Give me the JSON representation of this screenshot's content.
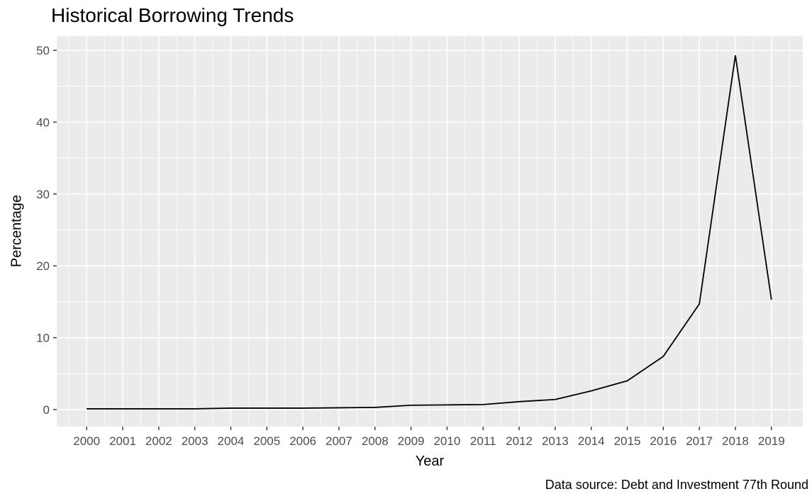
{
  "title": "Historical Borrowing Trends",
  "axes": {
    "xlabel": "Year",
    "ylabel": "Percentage"
  },
  "caption": "Data source: Debt and Investment 77th Round",
  "colors": {
    "page_bg": "#FFFFFF",
    "panel_bg": "#EBEBEB",
    "grid": "#FFFFFF",
    "line": "#000000",
    "tick_label": "#4D4D4D",
    "tick_mark": "#333333",
    "text": "#000000"
  },
  "chart_data": {
    "type": "line",
    "title": "Historical Borrowing Trends",
    "xlabel": "Year",
    "ylabel": "Percentage",
    "caption": "Data source: Debt and Investment 77th Round",
    "x": [
      2000,
      2001,
      2002,
      2003,
      2004,
      2005,
      2006,
      2007,
      2008,
      2009,
      2010,
      2011,
      2012,
      2013,
      2014,
      2015,
      2016,
      2017,
      2018,
      2019
    ],
    "series": [
      {
        "name": "Percentage",
        "values": [
          0.1,
          0.1,
          0.1,
          0.1,
          0.2,
          0.2,
          0.2,
          0.25,
          0.3,
          0.6,
          0.65,
          0.7,
          1.1,
          1.4,
          2.6,
          4.0,
          7.4,
          14.7,
          49.3,
          15.3
        ]
      }
    ],
    "xlim": [
      1999.17,
      2019.87
    ],
    "ylim": [
      -2.37,
      51.97
    ],
    "x_ticks": [
      2000,
      2001,
      2002,
      2003,
      2004,
      2005,
      2006,
      2007,
      2008,
      2009,
      2010,
      2011,
      2012,
      2013,
      2014,
      2015,
      2016,
      2017,
      2018,
      2019
    ],
    "y_ticks": [
      0,
      10,
      20,
      30,
      40,
      50
    ],
    "x_minor": [
      1999.5,
      2000.5,
      2001.5,
      2002.5,
      2003.5,
      2004.5,
      2005.5,
      2006.5,
      2007.5,
      2008.5,
      2009.5,
      2010.5,
      2011.5,
      2012.5,
      2013.5,
      2014.5,
      2015.5,
      2016.5,
      2017.5,
      2018.5,
      2019.5
    ],
    "y_minor": [
      5,
      15,
      25,
      35,
      45
    ],
    "grid": true,
    "legend": "none",
    "style": "ggplot-grey-panel"
  }
}
